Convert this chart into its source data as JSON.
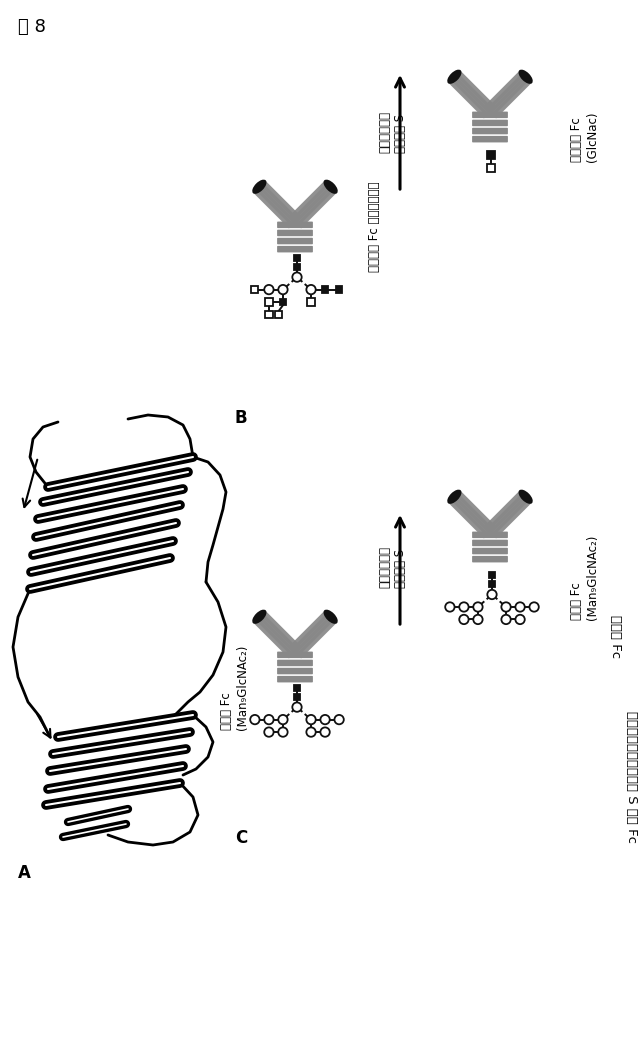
{
  "fig_label": "図 8",
  "bg_color": "#ffffff",
  "panel_A": "A",
  "panel_B": "B",
  "panel_C": "C",
  "text_wt_fc": "野生型 Fc",
  "text_endos_fc": "エンドグリコシダーゼ S 処置 Fc",
  "text_endos_B": "エンドグリコ\nシダーゼ S",
  "text_endos_C": "エンドグリコ\nシダーゼ S",
  "text_inactivated": "不活性化 Fc\n(GlcNac)",
  "text_normal_glyco": "「正常」 Fc グリコシル化",
  "text_activated_B": "活性化 Fc\n(Man₉GlcNAc₂)",
  "text_activated_C_left": "活性化 Fc\n(Man₉GlcNAc₂)",
  "text_activated_C_right": "活性化 Fc\n(Man₉GlcNAc₂)"
}
